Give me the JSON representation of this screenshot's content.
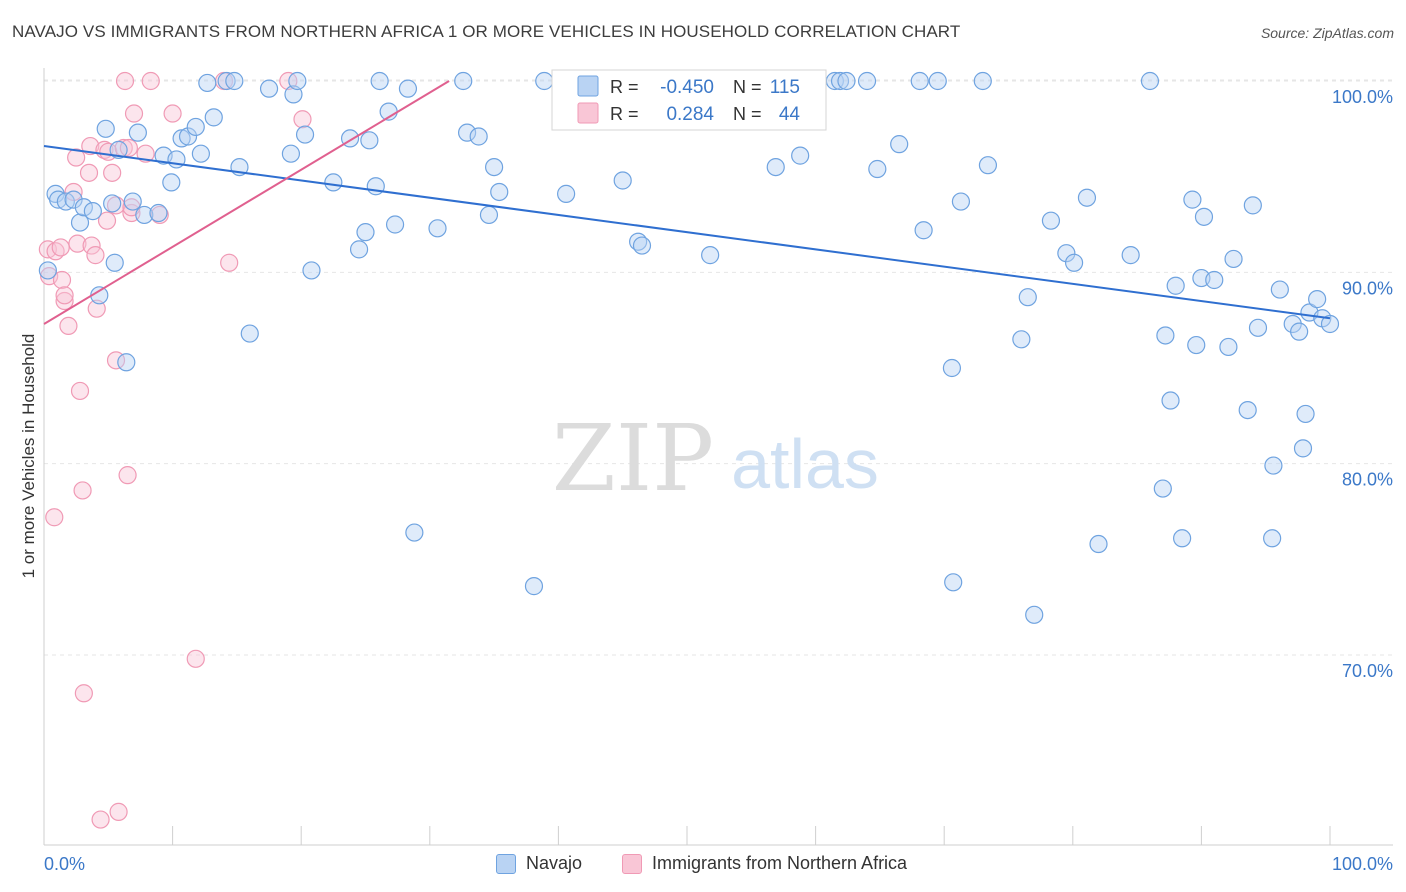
{
  "title": "NAVAJO VS IMMIGRANTS FROM NORTHERN AFRICA 1 OR MORE VEHICLES IN HOUSEHOLD CORRELATION CHART",
  "source": "Source: ZipAtlas.com",
  "watermark": {
    "zip": "ZIP",
    "atlas": "atlas"
  },
  "legend_top": [
    {
      "r_label": "R =",
      "r_value": "-0.450",
      "n_label": "N =",
      "n_value": "115"
    },
    {
      "r_label": "R =",
      "r_value": "0.284",
      "n_label": "N =",
      "n_value": "44"
    }
  ],
  "chart_data": {
    "type": "scatter",
    "title": "NAVAJO VS IMMIGRANTS FROM NORTHERN AFRICA 1 OR MORE VEHICLES IN HOUSEHOLD CORRELATION CHART",
    "xlabel": "",
    "ylabel": "1 or more Vehicles in Household",
    "xlim": [
      0,
      100
    ],
    "ylim": [
      60.5,
      101.5
    ],
    "x_tick_labels": [
      "0.0%",
      "100.0%"
    ],
    "y_ticks": [
      70,
      80,
      90,
      100
    ],
    "y_tick_labels": [
      "70.0%",
      "80.0%",
      "90.0%",
      "100.0%"
    ],
    "grid": true,
    "legend_position": "bottom-center",
    "colors": {
      "navajo": "#6fa3e0",
      "navajo_line": "#2f6fd0",
      "africa": "#f09ab5",
      "africa_line": "#e0608f",
      "axis_text": "#3b78c8"
    },
    "series": [
      {
        "name": "Navajo",
        "trend": [
          [
            0,
            96.6
          ],
          [
            100,
            87.6
          ]
        ],
        "points": [
          [
            0.3,
            90.1
          ],
          [
            0.9,
            94.1
          ],
          [
            1.1,
            93.8
          ],
          [
            1.7,
            93.7
          ],
          [
            2.3,
            93.8
          ],
          [
            2.8,
            92.6
          ],
          [
            3.1,
            93.4
          ],
          [
            3.8,
            93.2
          ],
          [
            4.3,
            88.8
          ],
          [
            4.8,
            97.5
          ],
          [
            5.3,
            93.6
          ],
          [
            5.5,
            90.5
          ],
          [
            5.8,
            96.4
          ],
          [
            6.4,
            85.3
          ],
          [
            6.9,
            93.7
          ],
          [
            7.3,
            97.3
          ],
          [
            7.8,
            93.0
          ],
          [
            8.9,
            93.1
          ],
          [
            9.3,
            96.1
          ],
          [
            9.9,
            94.7
          ],
          [
            10.3,
            95.9
          ],
          [
            10.7,
            97.0
          ],
          [
            11.2,
            97.1
          ],
          [
            11.8,
            97.6
          ],
          [
            12.2,
            96.2
          ],
          [
            12.7,
            99.9
          ],
          [
            13.2,
            98.1
          ],
          [
            14.2,
            100.0
          ],
          [
            14.8,
            100.0
          ],
          [
            15.2,
            95.5
          ],
          [
            16.0,
            86.8
          ],
          [
            17.5,
            99.6
          ],
          [
            19.2,
            96.2
          ],
          [
            19.4,
            99.3
          ],
          [
            19.7,
            100.0
          ],
          [
            20.3,
            97.2
          ],
          [
            20.8,
            90.1
          ],
          [
            22.5,
            94.7
          ],
          [
            23.8,
            97.0
          ],
          [
            24.5,
            91.2
          ],
          [
            25.0,
            92.1
          ],
          [
            25.3,
            96.9
          ],
          [
            25.8,
            94.5
          ],
          [
            26.1,
            100.0
          ],
          [
            26.8,
            98.4
          ],
          [
            27.3,
            92.5
          ],
          [
            28.3,
            99.6
          ],
          [
            28.8,
            76.4
          ],
          [
            30.6,
            92.3
          ],
          [
            32.6,
            100.0
          ],
          [
            32.9,
            97.3
          ],
          [
            33.8,
            97.1
          ],
          [
            34.6,
            93.0
          ],
          [
            35.0,
            95.5
          ],
          [
            35.4,
            94.2
          ],
          [
            38.1,
            73.6
          ],
          [
            38.9,
            100.0
          ],
          [
            40.6,
            94.1
          ],
          [
            45.0,
            94.8
          ],
          [
            46.2,
            91.6
          ],
          [
            46.5,
            91.4
          ],
          [
            51.8,
            90.9
          ],
          [
            53.4,
            100.0
          ],
          [
            56.9,
            95.5
          ],
          [
            58.8,
            96.1
          ],
          [
            61.5,
            100.0
          ],
          [
            61.9,
            100.0
          ],
          [
            62.4,
            100.0
          ],
          [
            64.0,
            100.0
          ],
          [
            64.8,
            95.4
          ],
          [
            66.5,
            96.7
          ],
          [
            68.1,
            100.0
          ],
          [
            68.4,
            92.2
          ],
          [
            69.5,
            100.0
          ],
          [
            70.6,
            85.0
          ],
          [
            70.7,
            73.8
          ],
          [
            71.3,
            93.7
          ],
          [
            73.0,
            100.0
          ],
          [
            73.4,
            95.6
          ],
          [
            76.0,
            86.5
          ],
          [
            76.5,
            88.7
          ],
          [
            77.0,
            72.1
          ],
          [
            78.3,
            92.7
          ],
          [
            79.5,
            91.0
          ],
          [
            80.1,
            90.5
          ],
          [
            81.1,
            93.9
          ],
          [
            82.0,
            75.8
          ],
          [
            84.5,
            90.9
          ],
          [
            86.0,
            100.0
          ],
          [
            87.0,
            78.7
          ],
          [
            87.2,
            86.7
          ],
          [
            87.6,
            83.3
          ],
          [
            88.0,
            89.3
          ],
          [
            88.5,
            76.1
          ],
          [
            89.3,
            93.8
          ],
          [
            89.6,
            86.2
          ],
          [
            90.0,
            89.7
          ],
          [
            90.2,
            92.9
          ],
          [
            91.0,
            89.6
          ],
          [
            92.1,
            86.1
          ],
          [
            92.5,
            90.7
          ],
          [
            93.6,
            82.8
          ],
          [
            94.0,
            93.5
          ],
          [
            94.4,
            87.1
          ],
          [
            95.5,
            76.1
          ],
          [
            95.6,
            79.9
          ],
          [
            96.1,
            89.1
          ],
          [
            97.1,
            87.3
          ],
          [
            97.6,
            86.9
          ],
          [
            97.9,
            80.8
          ],
          [
            98.1,
            82.6
          ],
          [
            98.4,
            87.9
          ],
          [
            99.0,
            88.6
          ],
          [
            99.4,
            87.6
          ],
          [
            100.0,
            87.3
          ]
        ]
      },
      {
        "name": "Immigrants from Northern Africa",
        "trend": [
          [
            0,
            87.3
          ],
          [
            31.5,
            100.0
          ]
        ],
        "points": [
          [
            0.3,
            91.2
          ],
          [
            0.4,
            89.8
          ],
          [
            0.8,
            77.2
          ],
          [
            0.9,
            91.1
          ],
          [
            1.3,
            91.3
          ],
          [
            1.4,
            89.6
          ],
          [
            1.6,
            88.5
          ],
          [
            1.6,
            88.8
          ],
          [
            1.9,
            87.2
          ],
          [
            2.3,
            94.2
          ],
          [
            2.5,
            96.0
          ],
          [
            2.6,
            91.5
          ],
          [
            2.8,
            83.8
          ],
          [
            3.0,
            78.6
          ],
          [
            3.1,
            68.0
          ],
          [
            3.5,
            95.2
          ],
          [
            3.6,
            96.6
          ],
          [
            3.7,
            91.4
          ],
          [
            4.0,
            90.9
          ],
          [
            4.1,
            88.1
          ],
          [
            4.4,
            61.4
          ],
          [
            4.7,
            96.4
          ],
          [
            4.9,
            92.7
          ],
          [
            5.0,
            96.3
          ],
          [
            5.3,
            95.2
          ],
          [
            5.6,
            85.4
          ],
          [
            5.6,
            93.5
          ],
          [
            5.8,
            61.8
          ],
          [
            6.2,
            96.5
          ],
          [
            6.3,
            100.0
          ],
          [
            6.5,
            79.4
          ],
          [
            6.6,
            96.5
          ],
          [
            6.8,
            93.1
          ],
          [
            6.8,
            93.4
          ],
          [
            7.0,
            98.3
          ],
          [
            7.9,
            96.2
          ],
          [
            8.3,
            100.0
          ],
          [
            9.0,
            93.0
          ],
          [
            10.0,
            98.3
          ],
          [
            11.8,
            69.8
          ],
          [
            14.0,
            100.0
          ],
          [
            14.4,
            90.5
          ],
          [
            19.0,
            100.0
          ],
          [
            20.1,
            98.0
          ]
        ]
      }
    ]
  }
}
